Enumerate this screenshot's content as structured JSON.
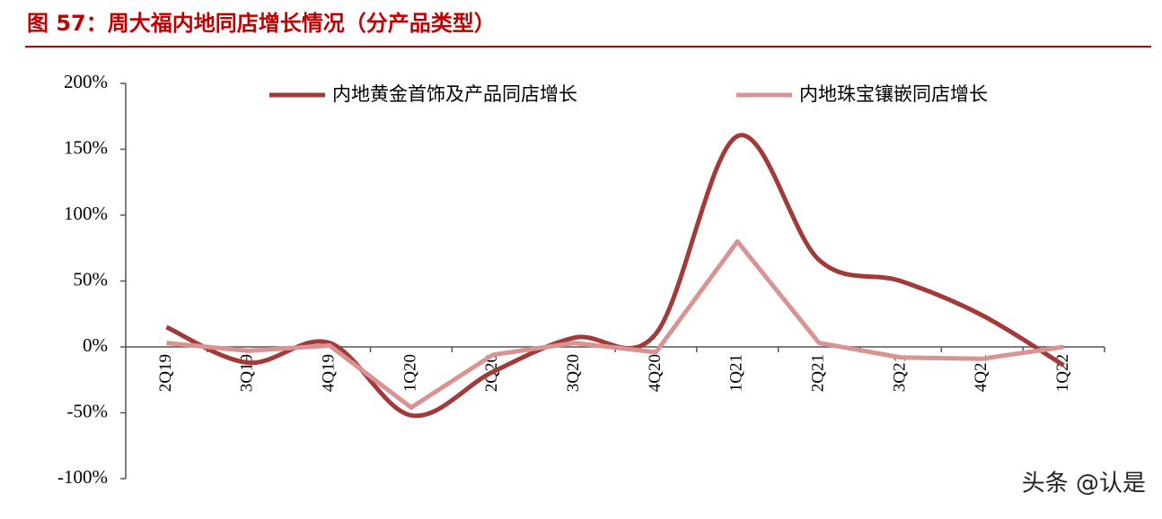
{
  "chart_data": {
    "type": "line",
    "title": "图 57：周大福内地同店增长情况（分产品类型）",
    "categories": [
      "2Q19",
      "3Q19",
      "4Q19",
      "1Q20",
      "2Q20",
      "3Q20",
      "4Q20",
      "1Q21",
      "2Q21",
      "3Q21",
      "4Q21",
      "1Q22"
    ],
    "series": [
      {
        "name": "内地黄金首饰及产品同店增长",
        "color": "#a23a3a",
        "smooth": true,
        "values": [
          15,
          -12,
          3,
          -52,
          -19,
          7,
          10,
          160,
          66,
          50,
          24,
          -14
        ]
      },
      {
        "name": "内地珠宝镶嵌同店增长",
        "color": "#d99393",
        "smooth": false,
        "values": [
          3,
          -3,
          1,
          -46,
          -6,
          3,
          -4,
          80,
          3,
          -8,
          -9,
          0
        ]
      }
    ],
    "ylim": [
      -100,
      200
    ],
    "yticks": [
      {
        "value": -100,
        "label": "-100%"
      },
      {
        "value": -50,
        "label": "-50%"
      },
      {
        "value": 0,
        "label": "0%"
      },
      {
        "value": 50,
        "label": "50%"
      },
      {
        "value": 100,
        "label": "100%"
      },
      {
        "value": 150,
        "label": "150%"
      },
      {
        "value": 200,
        "label": "200%"
      }
    ],
    "legend": "top",
    "watermark": "头条 @认是"
  }
}
